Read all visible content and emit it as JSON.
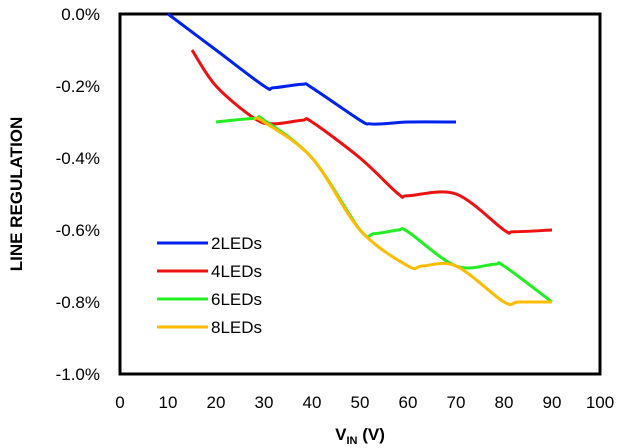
{
  "chart_data": {
    "type": "line",
    "xlabel": {
      "main": "V",
      "sub": "IN",
      "unit": " (V)"
    },
    "ylabel": "LINE REGULATION",
    "xlim": [
      0,
      100
    ],
    "ylim": [
      -1.0,
      0.0
    ],
    "x_ticks": [
      "0",
      "10",
      "20",
      "30",
      "40",
      "50",
      "60",
      "70",
      "80",
      "90",
      "100"
    ],
    "y_ticks": [
      "0.0%",
      "-0.2%",
      "-0.4%",
      "-0.6%",
      "-0.8%",
      "-1.0%"
    ],
    "grid": false,
    "legend_position": "bottom-left",
    "series": [
      {
        "name": "2LEDs",
        "color": "#0022ee",
        "x": [
          10,
          20,
          30,
          32,
          38,
          40,
          50,
          52,
          55,
          60,
          70
        ],
        "y": [
          0.0,
          -0.1,
          -0.2,
          -0.205,
          -0.195,
          -0.205,
          -0.295,
          -0.305,
          -0.305,
          -0.3,
          -0.3
        ]
      },
      {
        "name": "4LEDs",
        "color": "#ee1111",
        "x": [
          15,
          20,
          28,
          32,
          38,
          40,
          50,
          58,
          60,
          70,
          80,
          82,
          90
        ],
        "y": [
          -0.1,
          -0.2,
          -0.29,
          -0.305,
          -0.295,
          -0.3,
          -0.4,
          -0.5,
          -0.505,
          -0.5,
          -0.6,
          -0.605,
          -0.6
        ]
      },
      {
        "name": "6LEDs",
        "color": "#22ee22",
        "x": [
          20,
          28,
          30,
          40,
          50,
          53,
          58,
          60,
          70,
          78,
          80,
          90
        ],
        "y": [
          -0.3,
          -0.29,
          -0.295,
          -0.4,
          -0.6,
          -0.61,
          -0.6,
          -0.605,
          -0.7,
          -0.695,
          -0.7,
          -0.8
        ]
      },
      {
        "name": "8LEDs",
        "color": "#ffbb00",
        "x": [
          28,
          30,
          40,
          50,
          60,
          63,
          70,
          80,
          83,
          90
        ],
        "y": [
          -0.29,
          -0.3,
          -0.4,
          -0.6,
          -0.7,
          -0.7,
          -0.7,
          -0.8,
          -0.8,
          -0.8
        ]
      }
    ]
  }
}
